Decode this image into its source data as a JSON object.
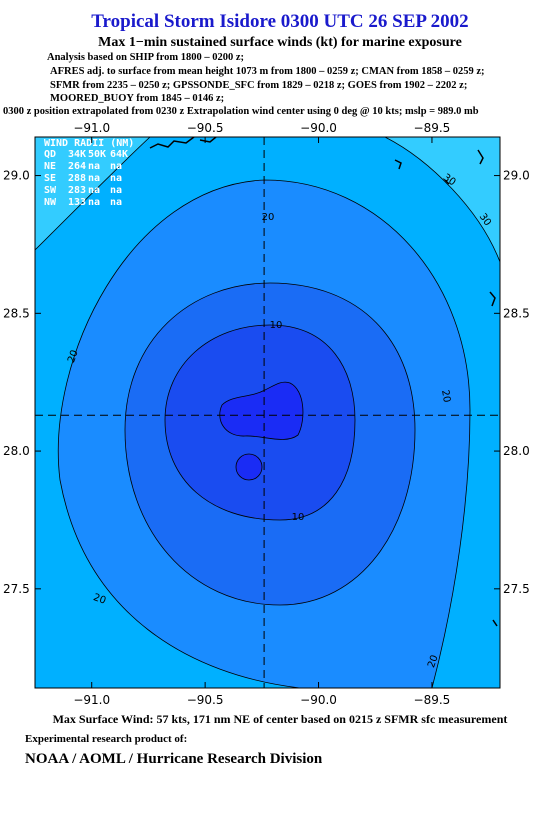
{
  "chart_data": {
    "type": "contour",
    "title": "Tropical Storm Isidore 0300 UTC 26 SEP 2002",
    "subtitle": "Max 1−min sustained surface winds (kt) for marine exposure",
    "notes": [
      "Analysis based on  SHIP from 1800 – 0200 z;",
      "AFRES adj. to surface from mean height 1073 m from 1800 – 0259 z;  CMAN from 1858 – 0259 z;",
      "SFMR from 2235 – 0250 z;  GPSSONDE_SFC from 1829 – 0218 z;  GOES from 1902 – 2202 z;",
      "MOORED_BUOY from 1845 – 0146 z;",
      "0300 z position extrapolated from 0230 z Extrapolation wind center using 0 deg @ 10 kts; mslp = 989.0 mb"
    ],
    "xlim": [
      -91.25,
      -89.2
    ],
    "ylim": [
      27.14,
      29.14
    ],
    "xticks": [
      {
        "value": -91.0,
        "label": "−91.0"
      },
      {
        "value": -90.5,
        "label": "−90.5"
      },
      {
        "value": -90.0,
        "label": "−90.0"
      },
      {
        "value": -89.5,
        "label": "−89.5"
      }
    ],
    "yticks": [
      {
        "value": 27.5,
        "label": "27.5"
      },
      {
        "value": 28.0,
        "label": "28.0"
      },
      {
        "value": 28.5,
        "label": "28.5"
      },
      {
        "value": 29.0,
        "label": "29.0"
      }
    ],
    "center": [
      -90.24,
      28.13
    ],
    "contour_levels": [
      10,
      20,
      30
    ],
    "contour_labels": [
      30,
      30,
      20,
      20,
      20,
      20,
      20,
      10,
      10
    ],
    "wind_radii": {
      "title": "WIND RADII (NM)",
      "header": [
        "QD",
        "34K",
        "50K",
        "64K"
      ],
      "rows": [
        [
          "NE",
          264,
          "na",
          "na"
        ],
        [
          "SE",
          288,
          "na",
          "na"
        ],
        [
          "SW",
          283,
          "na",
          "na"
        ],
        [
          "NW",
          133,
          "na",
          "na"
        ]
      ]
    },
    "footer": "Max Surface Wind: 57 kts, 171 nm NE of center based on 0215 z SFMR sfc measurement",
    "credit_intro": "Experimental research product of:",
    "credit": "NOAA / AOML / Hurricane Research Division"
  }
}
